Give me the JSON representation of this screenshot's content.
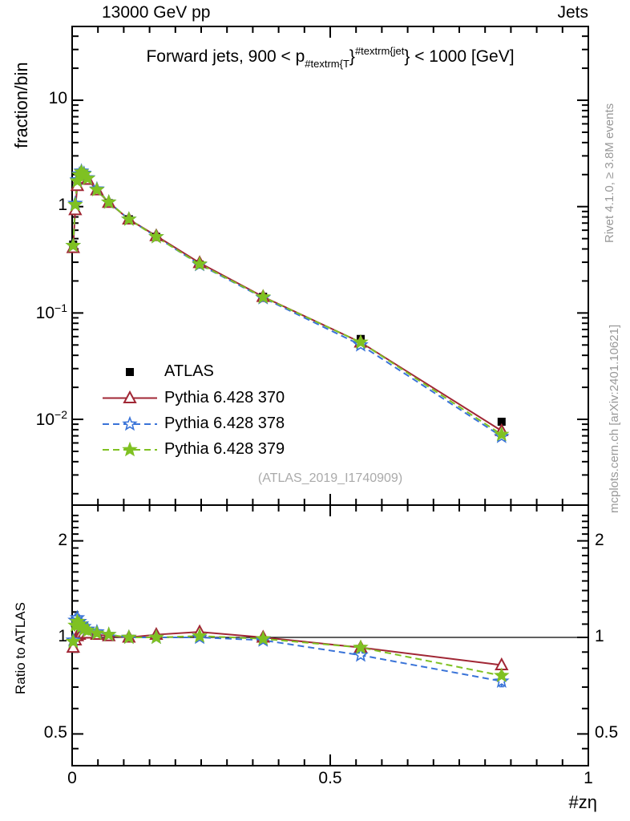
{
  "header": {
    "left": "13000 GeV pp",
    "right": "Jets"
  },
  "panel_top": {
    "ylabel": "fraction/bin",
    "watermark": "(ATLAS_2019_I1740909)",
    "title_parts": [
      {
        "t": "Forward jets, 900 < p",
        "s": "n"
      },
      {
        "t": "#textrm{T",
        "s": "sub"
      },
      {
        "t": "}",
        "s": "n"
      },
      {
        "t": "#textrm{jet",
        "s": "sup"
      },
      {
        "t": "}",
        "s": "n"
      },
      {
        "t": " < 1000 [GeV]",
        "s": "n"
      }
    ],
    "yticks": [
      {
        "base": "10",
        "exp": "",
        "v": 10
      },
      {
        "base": "1",
        "exp": "",
        "v": 1
      },
      {
        "base": "10",
        "exp": "−1",
        "v": 0.1
      },
      {
        "base": "10",
        "exp": "−2",
        "v": 0.01
      }
    ]
  },
  "panel_ratio": {
    "ylabel": "Ratio to ATLAS",
    "yticks": [
      {
        "label": "2",
        "v": 2
      },
      {
        "label": "1",
        "v": 1
      },
      {
        "label": "0.5",
        "v": 0.5
      }
    ]
  },
  "xaxis": {
    "label": "#zη",
    "ticks": [
      {
        "label": "0",
        "v": 0
      },
      {
        "label": "0.5",
        "v": 0.5
      },
      {
        "label": "1",
        "v": 1
      }
    ]
  },
  "side_notes": {
    "top": "Rivet 4.1.0, ≥ 3.8M events",
    "bottom": "mcplots.cern.ch [arXiv:2401.10621]"
  },
  "legend": [
    {
      "series": "ATLAS",
      "label": "ATLAS"
    },
    {
      "series": "Pythia 6.428 370",
      "label": "Pythia 6.428 370"
    },
    {
      "series": "Pythia 6.428 378",
      "label": "Pythia 6.428 378"
    },
    {
      "series": "Pythia 6.428 379",
      "label": "Pythia 6.428 379"
    }
  ],
  "chart_data": {
    "type": "line",
    "title": "Forward jets, 900 < pT^jet < 1000 [GeV]",
    "xlabel": "#zη",
    "ylabel": "fraction/bin",
    "ratio_ylabel": "Ratio to ATLAS",
    "x": [
      0.002,
      0.006,
      0.01,
      0.014,
      0.018,
      0.023,
      0.03,
      0.048,
      0.071,
      0.11,
      0.163,
      0.247,
      0.37,
      0.559,
      0.832
    ],
    "xlim": [
      0,
      1
    ],
    "y_scale": "log",
    "ylim": [
      0.00156,
      49
    ],
    "ratio_scale": "log",
    "ratio_ylim": [
      0.405,
      2.44
    ],
    "series": [
      {
        "name": "ATLAS",
        "color": "#000000",
        "marker": "square",
        "line": "none",
        "values": [
          0.44,
          0.95,
          1.55,
          1.8,
          1.95,
          1.9,
          1.75,
          1.4,
          1.08,
          0.76,
          0.52,
          0.285,
          0.142,
          0.057,
          0.0095
        ]
      },
      {
        "name": "Pythia 6.428 370",
        "color": "#a12735",
        "marker": "triangle-open",
        "line": "solid",
        "values": [
          0.41,
          0.93,
          1.57,
          1.84,
          2.01,
          1.96,
          1.8,
          1.43,
          1.09,
          0.76,
          0.53,
          0.296,
          0.142,
          0.053,
          0.0078
        ],
        "ratio": [
          0.93,
          0.98,
          1.01,
          1.02,
          1.03,
          1.03,
          1.03,
          1.02,
          1.01,
          1.0,
          1.02,
          1.04,
          1.0,
          0.93,
          0.82
        ],
        "ratio_err": [
          0,
          0,
          0,
          0,
          0,
          0,
          0,
          0,
          0,
          0,
          0,
          0,
          0,
          0,
          0.012
        ]
      },
      {
        "name": "Pythia 6.428 378",
        "color": "#3973d8",
        "marker": "star-open",
        "line": "dashed",
        "values": [
          0.43,
          1.07,
          1.78,
          2.02,
          2.15,
          2.05,
          1.86,
          1.46,
          1.1,
          0.76,
          0.52,
          0.285,
          0.139,
          0.05,
          0.0069
        ],
        "ratio": [
          0.98,
          1.13,
          1.15,
          1.12,
          1.1,
          1.08,
          1.06,
          1.04,
          1.02,
          1.0,
          1.0,
          1.0,
          0.98,
          0.88,
          0.73
        ],
        "ratio_err": [
          0,
          0,
          0,
          0,
          0,
          0,
          0,
          0,
          0,
          0,
          0,
          0,
          0,
          0.008,
          0.028
        ]
      },
      {
        "name": "Pythia 6.428 379",
        "color": "#7fc122",
        "marker": "star-filled",
        "line": "dashed",
        "values": [
          0.43,
          1.04,
          1.74,
          1.98,
          2.11,
          2.01,
          1.84,
          1.44,
          1.1,
          0.76,
          0.52,
          0.288,
          0.141,
          0.053,
          0.0072
        ],
        "ratio": [
          0.97,
          1.09,
          1.12,
          1.1,
          1.08,
          1.06,
          1.05,
          1.03,
          1.02,
          1.0,
          1.0,
          1.01,
          0.99,
          0.93,
          0.76
        ],
        "ratio_err": [
          0,
          0,
          0,
          0,
          0,
          0,
          0,
          0,
          0,
          0,
          0,
          0,
          0,
          0,
          0.018
        ]
      }
    ],
    "legend_position": "inside-left-bottom-of-top-panel",
    "grid": false
  }
}
